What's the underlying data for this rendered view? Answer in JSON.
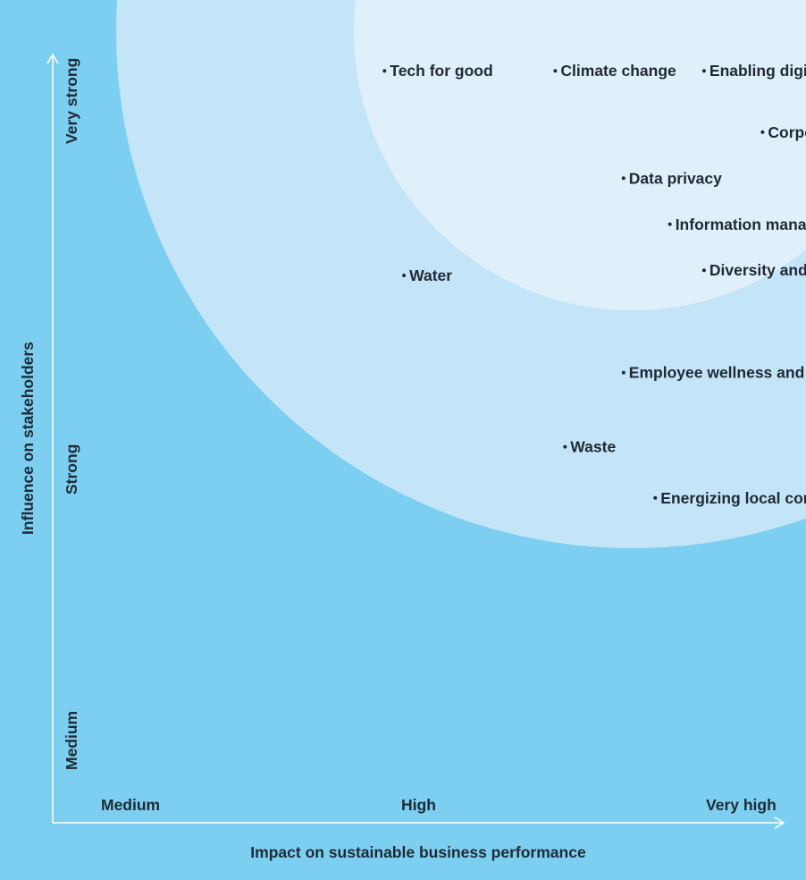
{
  "colors": {
    "background": "#7dcff2",
    "outer_circle": "#c4e5f8",
    "inner_circle": "#e0f0fb",
    "text": "#1f2a33",
    "axis": "#ffffff"
  },
  "chart_data": {
    "type": "scatter",
    "x_axis": {
      "title": "Impact on sustainable business performance",
      "ticks": [
        "Medium",
        "High",
        "Very high"
      ],
      "range": [
        0.0,
        3.0
      ]
    },
    "y_axis": {
      "title": "Influence on stakeholders",
      "ticks": [
        "Medium",
        "Strong",
        "Very strong"
      ],
      "range": [
        0.0,
        3.0
      ]
    },
    "points": [
      {
        "label": "Tech for good",
        "x": 1.36,
        "y": 2.94
      },
      {
        "label": "Climate change",
        "x": 2.06,
        "y": 2.94
      },
      {
        "label": "Enabling digital talent at scale",
        "x": 2.67,
        "y": 2.94
      },
      {
        "label": "Corporate governance",
        "x": 2.91,
        "y": 2.7
      },
      {
        "label": "Data privacy",
        "x": 2.34,
        "y": 2.52
      },
      {
        "label": "Information management",
        "x": 2.53,
        "y": 2.34
      },
      {
        "label": "Diversity and inclusion",
        "x": 2.67,
        "y": 2.16
      },
      {
        "label": "Water",
        "x": 1.44,
        "y": 2.14
      },
      {
        "label": "Employee wellness and experience",
        "x": 2.34,
        "y": 1.76
      },
      {
        "label": "Waste",
        "x": 2.1,
        "y": 1.47
      },
      {
        "label": "Energizing local communities",
        "x": 2.47,
        "y": 1.27
      }
    ],
    "materiality_zones": [
      "high",
      "highest"
    ],
    "grid": false,
    "legend": "none"
  }
}
